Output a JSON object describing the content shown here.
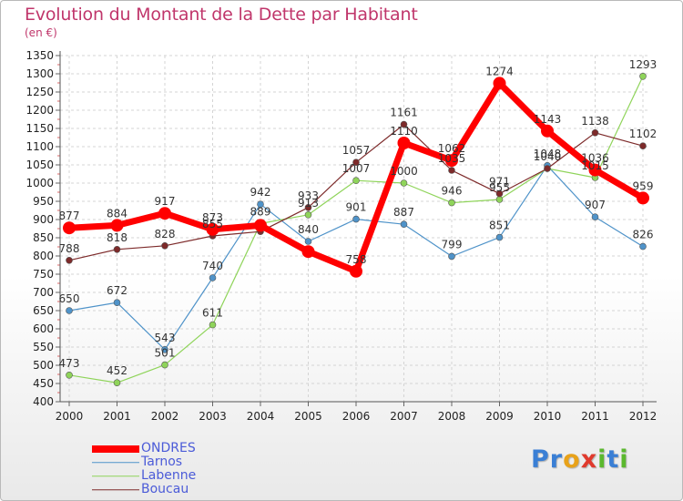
{
  "title": "Evolution du Montant de la Dette par Habitant",
  "unit": "(en €)",
  "logo": {
    "letters": [
      "P",
      "r",
      "o",
      "x",
      "i",
      "t",
      "i"
    ],
    "colors": [
      "#3a7fd5",
      "#3a7fd5",
      "#e8a21a",
      "#e03a2d",
      "#5bb82e",
      "#3a7fd5",
      "#5bb82e"
    ]
  },
  "chart_data": {
    "type": "line",
    "x": [
      "2000",
      "2001",
      "2002",
      "2003",
      "2004",
      "2005",
      "2006",
      "2007",
      "2008",
      "2009",
      "2010",
      "2011",
      "2012"
    ],
    "ylim": [
      400,
      1350
    ],
    "yticks": [
      400,
      450,
      500,
      550,
      600,
      650,
      700,
      750,
      800,
      850,
      900,
      950,
      1000,
      1050,
      1100,
      1150,
      1200,
      1250,
      1300,
      1350
    ],
    "grid": true,
    "legend": "bottom-left",
    "series": [
      {
        "name": "ONDRES",
        "color": "#ff0000",
        "width": 7,
        "marker": 7,
        "values": [
          877,
          884,
          917,
          873,
          884,
          812,
          758,
          1110,
          1062,
          1274,
          1143,
          1036,
          959
        ],
        "labels": [
          "877",
          "884",
          "917",
          "873",
          "",
          "",
          "758",
          "1110",
          "1062",
          "1274",
          "1143",
          "1036",
          "959"
        ]
      },
      {
        "name": "Tarnos",
        "color": "#4f93c9",
        "width": 1.2,
        "marker": 3.5,
        "values": [
          650,
          672,
          543,
          740,
          942,
          840,
          901,
          887,
          799,
          851,
          1048,
          907,
          826
        ],
        "labels": [
          "650",
          "672",
          "543",
          "740",
          "942",
          "840",
          "901",
          "887",
          "799",
          "851",
          "1048",
          "907",
          "826"
        ]
      },
      {
        "name": "Labenne",
        "color": "#8fd45a",
        "width": 1.2,
        "marker": 3.5,
        "values": [
          473,
          452,
          501,
          611,
          889,
          913,
          1007,
          1000,
          946,
          955,
          1040,
          1015,
          1293
        ],
        "labels": [
          "473",
          "452",
          "501",
          "611",
          "889",
          "913",
          "1007",
          "1000",
          "946",
          "955",
          "1040",
          "1015",
          "1293"
        ]
      },
      {
        "name": "Boucau",
        "color": "#7d2a2a",
        "width": 1.2,
        "marker": 3.5,
        "values": [
          788,
          818,
          828,
          855,
          867,
          933,
          1057,
          1161,
          1035,
          971,
          1040,
          1138,
          1102
        ],
        "labels": [
          "788",
          "818",
          "828",
          "855",
          "",
          "933",
          "1057",
          "1161",
          "1035",
          "971",
          "",
          "1138",
          "1102"
        ]
      }
    ]
  }
}
